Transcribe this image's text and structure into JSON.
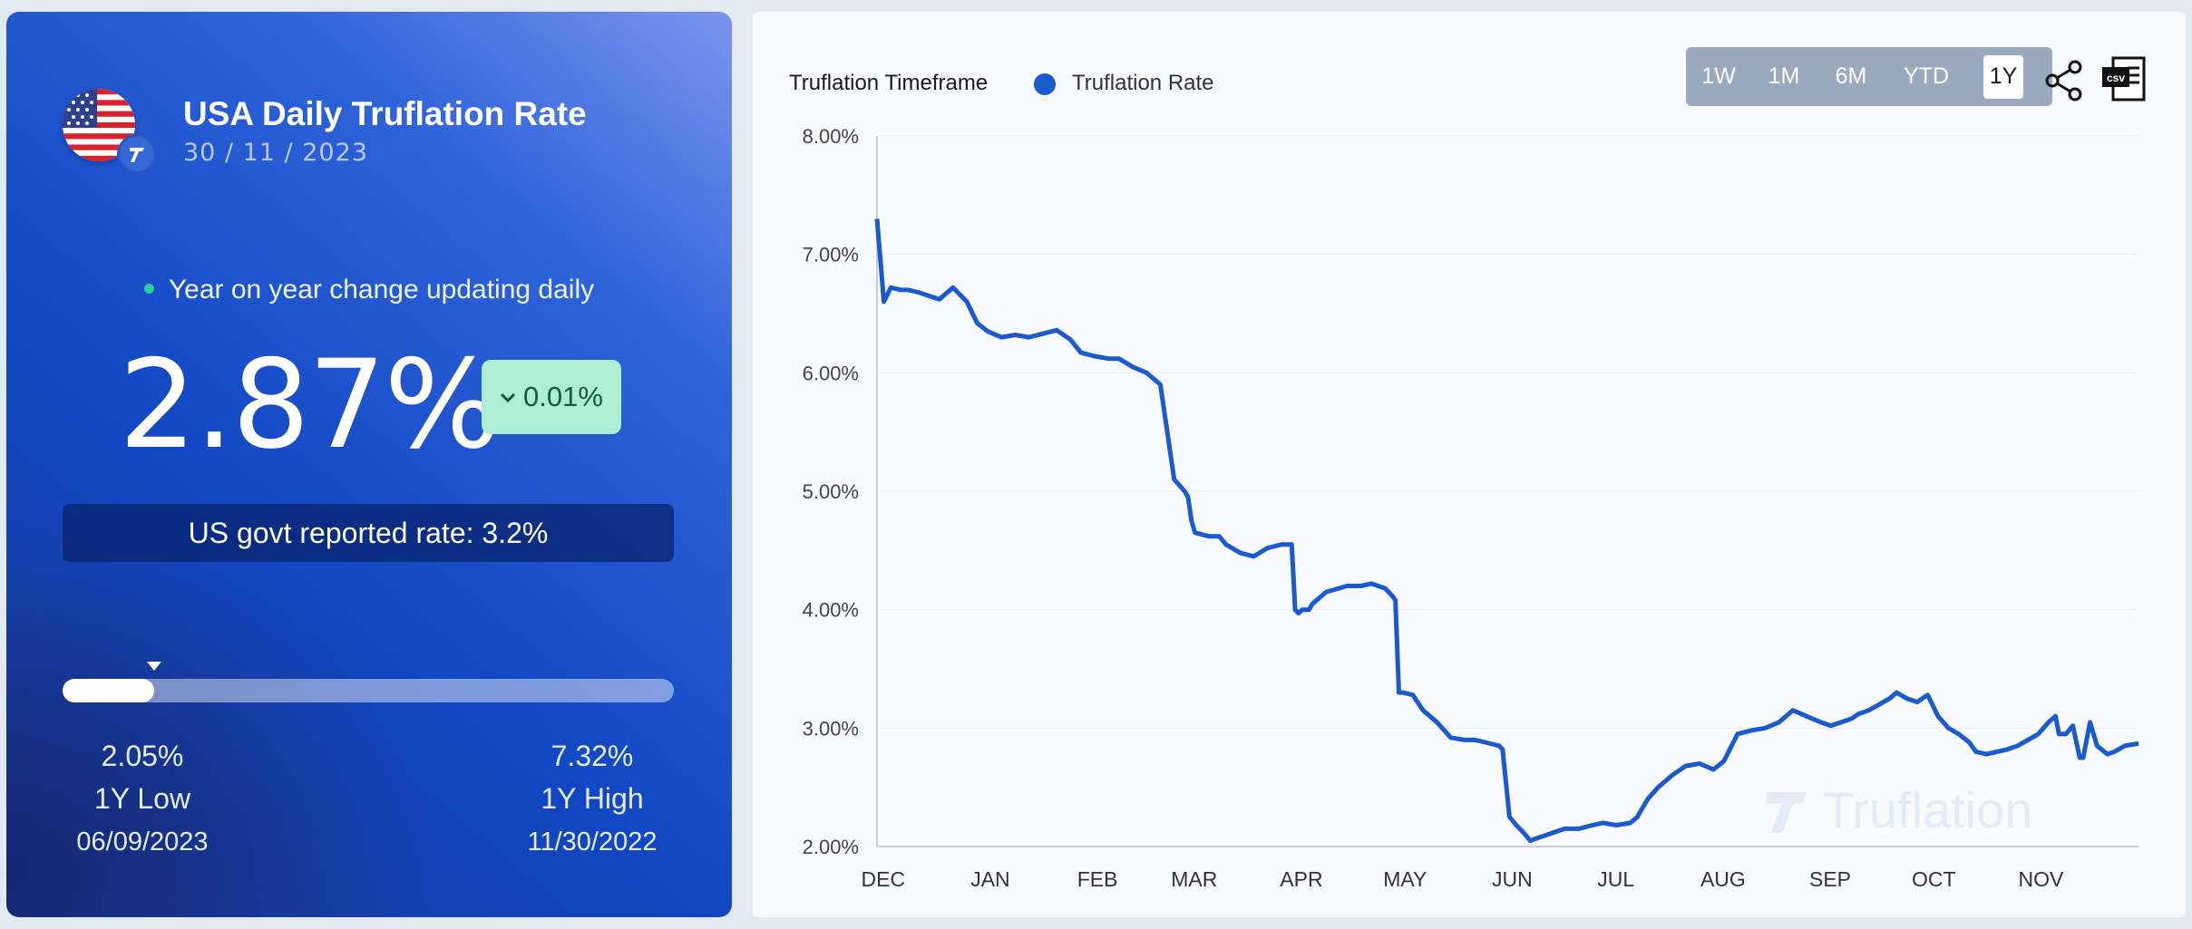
{
  "card": {
    "title": "USA Daily Truflation Rate",
    "date": "30 / 11 / 2023",
    "yoy_text": "Year on year change updating daily",
    "rate": "2.87%",
    "change": "0.01%",
    "change_direction": "down",
    "govt_rate": "US govt reported rate: 3.2%",
    "range": {
      "position_fraction": 0.15,
      "low_value": "2.05%",
      "low_label": "1Y Low",
      "low_date": "06/09/2023",
      "high_value": "7.32%",
      "high_label": "1Y High",
      "high_date": "11/30/2022"
    }
  },
  "chart_header": {
    "legend_title": "Truflation Timeframe",
    "series_label": "Truflation Rate",
    "buttons": [
      "1W",
      "1M",
      "6M",
      "YTD",
      "1Y"
    ],
    "active_button": "1Y",
    "csv_label": "csv"
  },
  "watermark": "Truflation",
  "colors": {
    "series": "#1a5ad0",
    "accent_green": "#28d39a",
    "pill_bg": "#aeeed5"
  },
  "chart_data": {
    "type": "line",
    "title": "",
    "xlabel": "",
    "ylabel": "",
    "ylim": [
      2.0,
      8.0
    ],
    "yticks": [
      "2.00%",
      "3.00%",
      "4.00%",
      "5.00%",
      "6.00%",
      "7.00%",
      "8.00%"
    ],
    "xticks": [
      "DEC",
      "JAN",
      "FEB",
      "MAR",
      "APR",
      "MAY",
      "JUN",
      "JUL",
      "AUG",
      "SEP",
      "OCT",
      "NOV"
    ],
    "x_unit": "day index (0 = 2022-11-30, 365 = 2023-11-30)",
    "grid": true,
    "series": [
      {
        "name": "Truflation Rate",
        "x": [
          0,
          2,
          4,
          7,
          9,
          12,
          18,
          22,
          26,
          29,
          32,
          36,
          40,
          44,
          48,
          52,
          56,
          59,
          63,
          67,
          70,
          74,
          78,
          82,
          86,
          89,
          90,
          91,
          92,
          96,
          99,
          101,
          105,
          109,
          113,
          117,
          120,
          121,
          122,
          123,
          124,
          125,
          126,
          130,
          136,
          140,
          143,
          147,
          149,
          150,
          151,
          152,
          155,
          158,
          162,
          166,
          170,
          173,
          176,
          180,
          181,
          183,
          185,
          187,
          189,
          192,
          196,
          199,
          203,
          207,
          210,
          214,
          218,
          220,
          223,
          226,
          230,
          234,
          238,
          242,
          245,
          249,
          253,
          257,
          261,
          265,
          269,
          273,
          276,
          279,
          282,
          284,
          287,
          290,
          293,
          295,
          298,
          301,
          304,
          307,
          310,
          313,
          316,
          318,
          321,
          324,
          327,
          330,
          333,
          336,
          339,
          341,
          342,
          344,
          346,
          348,
          349,
          351,
          353,
          356,
          358,
          361,
          365
        ],
        "y": [
          7.3,
          6.6,
          6.72,
          6.7,
          6.7,
          6.68,
          6.62,
          6.72,
          6.6,
          6.42,
          6.35,
          6.3,
          6.32,
          6.3,
          6.33,
          6.36,
          6.28,
          6.17,
          6.14,
          6.12,
          6.12,
          6.05,
          6.0,
          5.9,
          5.1,
          5.0,
          4.95,
          4.75,
          4.65,
          4.62,
          4.62,
          4.55,
          4.48,
          4.45,
          4.52,
          4.55,
          4.55,
          4.0,
          3.97,
          4.0,
          4.0,
          4.0,
          4.05,
          4.15,
          4.2,
          4.2,
          4.22,
          4.18,
          4.12,
          4.08,
          3.3,
          3.3,
          3.28,
          3.15,
          3.05,
          2.92,
          2.9,
          2.9,
          2.88,
          2.85,
          2.82,
          2.25,
          2.18,
          2.12,
          2.05,
          2.08,
          2.12,
          2.15,
          2.15,
          2.18,
          2.2,
          2.18,
          2.2,
          2.25,
          2.4,
          2.5,
          2.6,
          2.68,
          2.7,
          2.65,
          2.72,
          2.95,
          2.98,
          3.0,
          3.05,
          3.15,
          3.1,
          3.05,
          3.02,
          3.05,
          3.08,
          3.12,
          3.15,
          3.2,
          3.25,
          3.3,
          3.25,
          3.22,
          3.28,
          3.1,
          3.0,
          2.95,
          2.88,
          2.8,
          2.78,
          2.8,
          2.82,
          2.85,
          2.9,
          2.95,
          3.05,
          3.1,
          2.95,
          2.95,
          3.02,
          2.75,
          2.75,
          3.05,
          2.85,
          2.78,
          2.8,
          2.85,
          2.87
        ]
      }
    ]
  }
}
